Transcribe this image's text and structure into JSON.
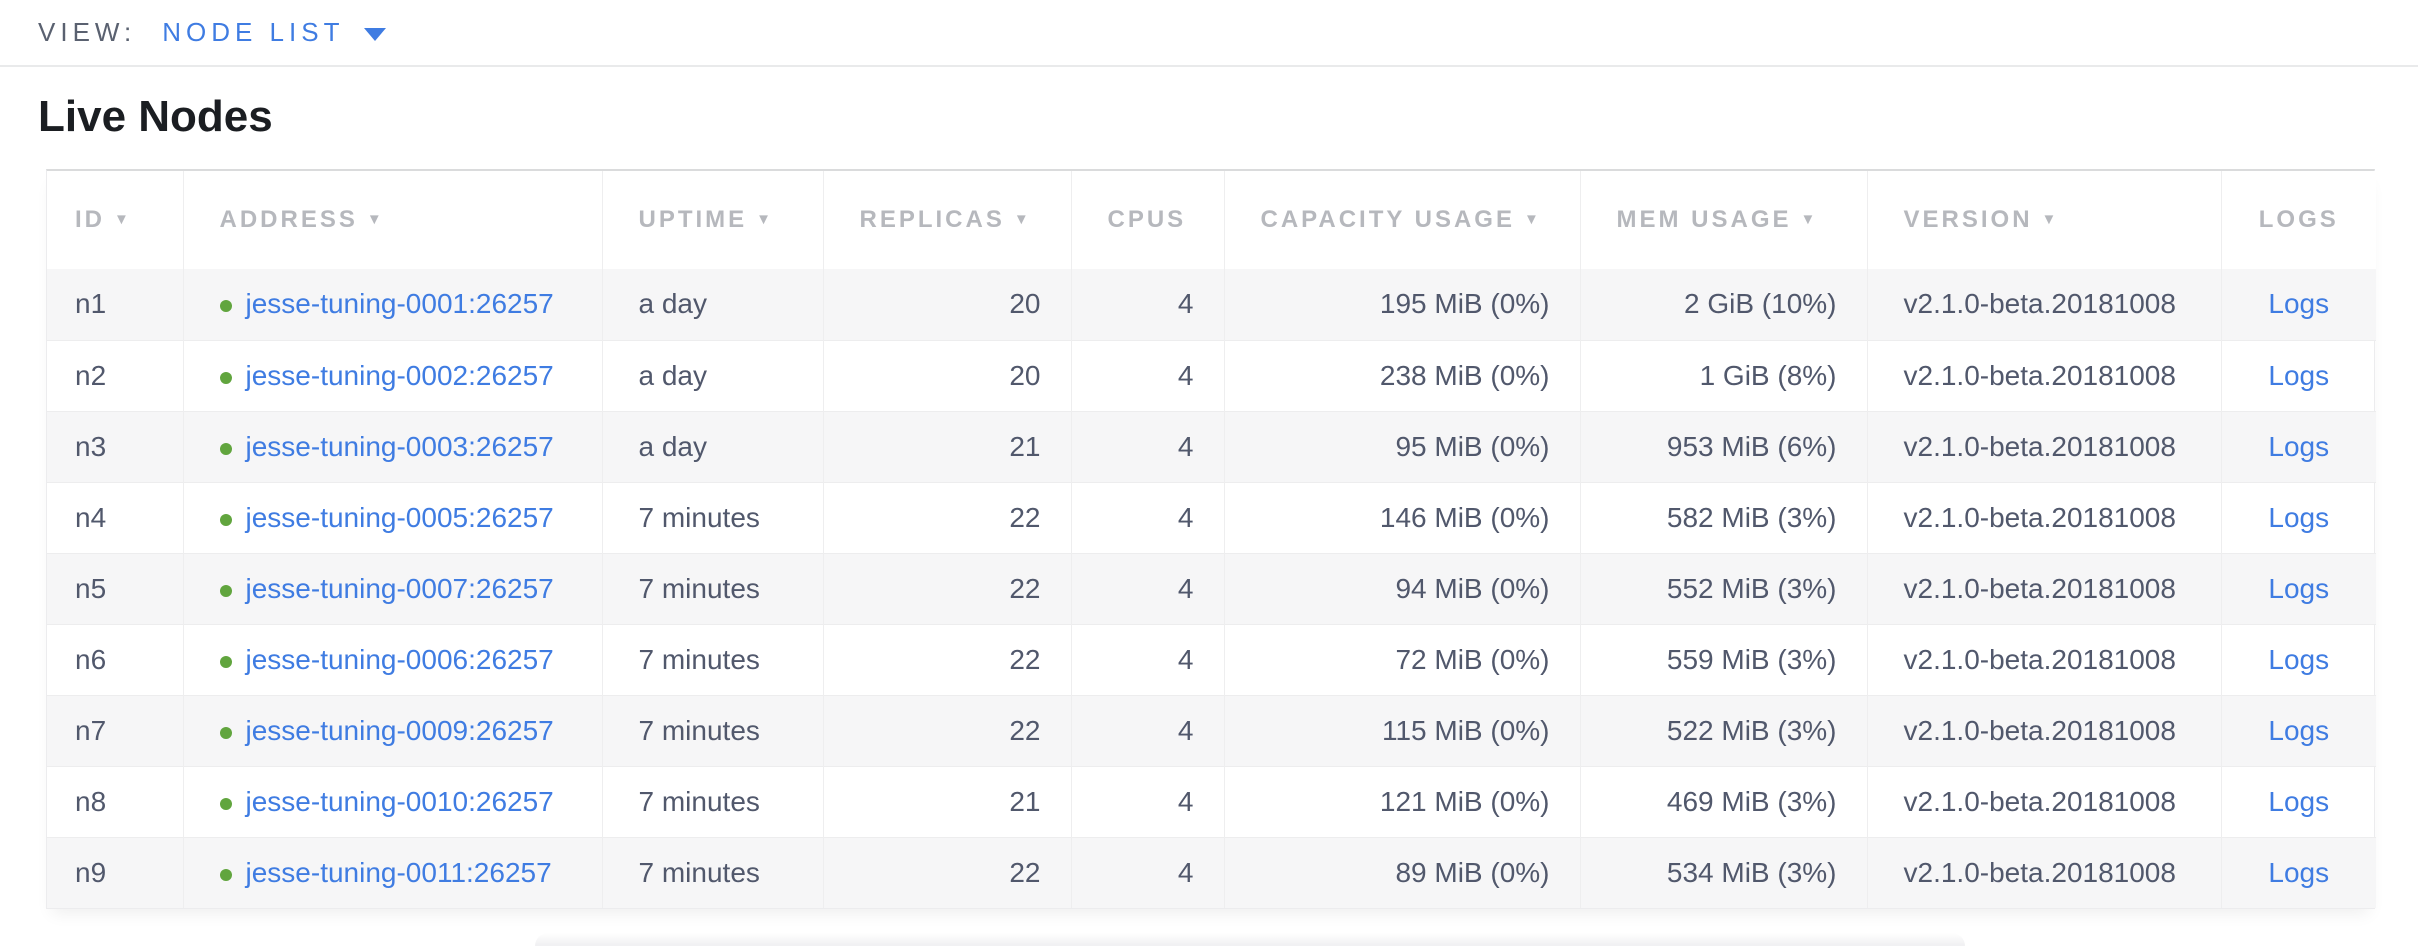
{
  "view_bar": {
    "label": "VIEW:",
    "selected": "NODE LIST"
  },
  "page": {
    "title": "Live Nodes"
  },
  "table": {
    "columns": [
      {
        "key": "id",
        "label": "ID",
        "sortable": true,
        "cell_align": "left"
      },
      {
        "key": "address",
        "label": "ADDRESS",
        "sortable": true,
        "cell_align": "left"
      },
      {
        "key": "uptime",
        "label": "UPTIME",
        "sortable": true,
        "cell_align": "left"
      },
      {
        "key": "replicas",
        "label": "REPLICAS",
        "sortable": true,
        "cell_align": "right"
      },
      {
        "key": "cpus",
        "label": "CPUS",
        "sortable": false,
        "cell_align": "right"
      },
      {
        "key": "capacity",
        "label": "CAPACITY USAGE",
        "sortable": true,
        "cell_align": "right"
      },
      {
        "key": "mem",
        "label": "MEM USAGE",
        "sortable": true,
        "cell_align": "right"
      },
      {
        "key": "version",
        "label": "VERSION",
        "sortable": true,
        "cell_align": "left"
      },
      {
        "key": "logs",
        "label": "LOGS",
        "sortable": false,
        "cell_align": "center"
      }
    ],
    "rows": [
      {
        "id": "n1",
        "address": "jesse-tuning-0001:26257",
        "uptime": "a day",
        "replicas": "20",
        "cpus": "4",
        "capacity": "195 MiB (0%)",
        "mem": "2 GiB (10%)",
        "version": "v2.1.0-beta.20181008",
        "logs": "Logs"
      },
      {
        "id": "n2",
        "address": "jesse-tuning-0002:26257",
        "uptime": "a day",
        "replicas": "20",
        "cpus": "4",
        "capacity": "238 MiB (0%)",
        "mem": "1 GiB (8%)",
        "version": "v2.1.0-beta.20181008",
        "logs": "Logs"
      },
      {
        "id": "n3",
        "address": "jesse-tuning-0003:26257",
        "uptime": "a day",
        "replicas": "21",
        "cpus": "4",
        "capacity": "95 MiB (0%)",
        "mem": "953 MiB (6%)",
        "version": "v2.1.0-beta.20181008",
        "logs": "Logs"
      },
      {
        "id": "n4",
        "address": "jesse-tuning-0005:26257",
        "uptime": "7 minutes",
        "replicas": "22",
        "cpus": "4",
        "capacity": "146 MiB (0%)",
        "mem": "582 MiB (3%)",
        "version": "v2.1.0-beta.20181008",
        "logs": "Logs"
      },
      {
        "id": "n5",
        "address": "jesse-tuning-0007:26257",
        "uptime": "7 minutes",
        "replicas": "22",
        "cpus": "4",
        "capacity": "94 MiB (0%)",
        "mem": "552 MiB (3%)",
        "version": "v2.1.0-beta.20181008",
        "logs": "Logs"
      },
      {
        "id": "n6",
        "address": "jesse-tuning-0006:26257",
        "uptime": "7 minutes",
        "replicas": "22",
        "cpus": "4",
        "capacity": "72 MiB (0%)",
        "mem": "559 MiB (3%)",
        "version": "v2.1.0-beta.20181008",
        "logs": "Logs"
      },
      {
        "id": "n7",
        "address": "jesse-tuning-0009:26257",
        "uptime": "7 minutes",
        "replicas": "22",
        "cpus": "4",
        "capacity": "115 MiB (0%)",
        "mem": "522 MiB (3%)",
        "version": "v2.1.0-beta.20181008",
        "logs": "Logs"
      },
      {
        "id": "n8",
        "address": "jesse-tuning-0010:26257",
        "uptime": "7 minutes",
        "replicas": "21",
        "cpus": "4",
        "capacity": "121 MiB (0%)",
        "mem": "469 MiB (3%)",
        "version": "v2.1.0-beta.20181008",
        "logs": "Logs"
      },
      {
        "id": "n9",
        "address": "jesse-tuning-0011:26257",
        "uptime": "7 minutes",
        "replicas": "22",
        "cpus": "4",
        "capacity": "89 MiB (0%)",
        "mem": "534 MiB (3%)",
        "version": "v2.1.0-beta.20181008",
        "logs": "Logs"
      }
    ]
  },
  "icons": {
    "sort_desc": "▼",
    "node_status": "healthy-dot"
  },
  "colors": {
    "accent_blue": "#3f7ce2",
    "healthy_green": "#61a53e",
    "header_gray": "#b6b8bd",
    "body_text": "#51586c",
    "row_stripe": "#f6f6f7"
  }
}
